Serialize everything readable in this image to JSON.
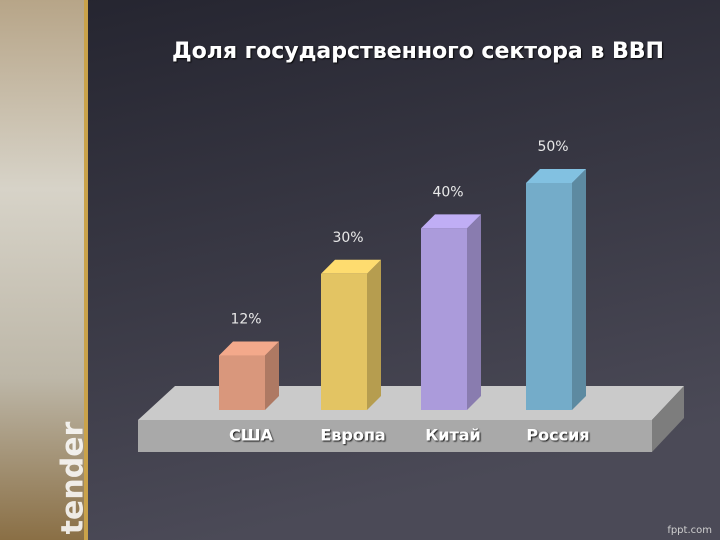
{
  "chart_data": {
    "type": "bar3d",
    "title": "Доля государственного сектора в ВВП",
    "categories": [
      "США",
      "Европа",
      "Китай",
      "Россия"
    ],
    "values": [
      12,
      30,
      40,
      50
    ],
    "value_labels": [
      "12%",
      "30%",
      "40%",
      "50%"
    ],
    "colors": [
      "#d9977c",
      "#e3c463",
      "#ab9bdb",
      "#74acc9"
    ]
  },
  "side_label": "tender",
  "footer": "fppt.com"
}
